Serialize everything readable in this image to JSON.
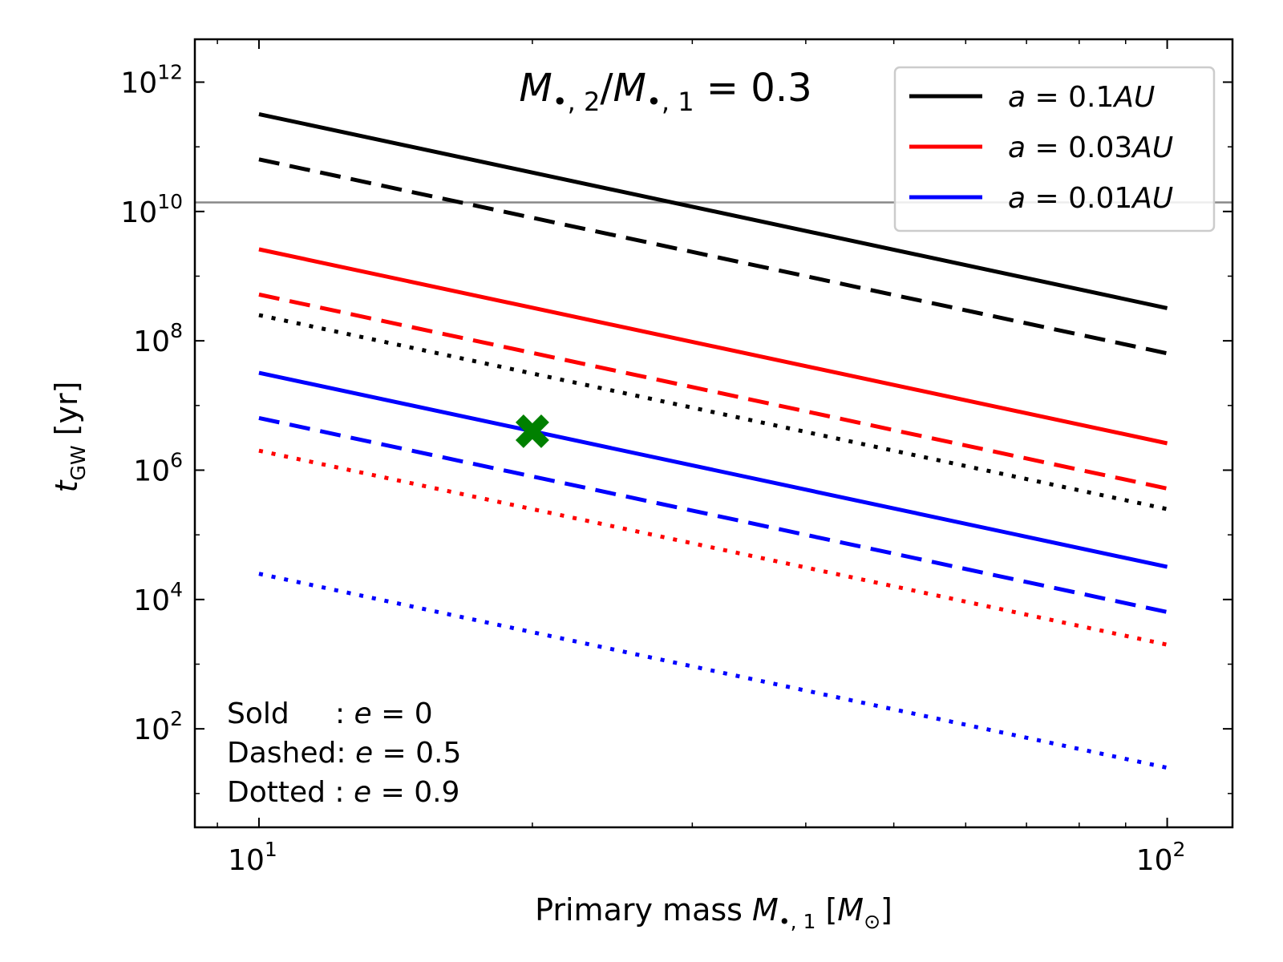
{
  "chart_data": {
    "type": "line",
    "title": "M•,2/M•,1 = 0.3",
    "title_parts": {
      "num": "M",
      "num_sub": "•, 2",
      "slash": "/",
      "den": "M",
      "den_sub": "•, 1",
      "eq": " = 0.3"
    },
    "xlabel": "Primary mass M•,1 [M⊙]",
    "xlabel_parts": {
      "text": "Primary mass ",
      "sym": "M",
      "sub": "•, 1",
      "unit_open": " [",
      "unit": "M",
      "unit_sub": "⊙",
      "unit_close": "]"
    },
    "ylabel": "tGW [yr]",
    "ylabel_parts": {
      "sym": "t",
      "sub": "GW",
      "unit": " [yr]"
    },
    "x_scale": "log",
    "y_scale": "log",
    "xlim": [
      8.5,
      118
    ],
    "ylim": [
      3,
      4600000000000.0
    ],
    "x_ticks": [
      {
        "base": "10",
        "exp": "1",
        "value": 10
      },
      {
        "base": "10",
        "exp": "2",
        "value": 100
      }
    ],
    "y_ticks": [
      {
        "base": "10",
        "exp": "2",
        "value": 100
      },
      {
        "base": "10",
        "exp": "4",
        "value": 10000
      },
      {
        "base": "10",
        "exp": "6",
        "value": 1000000
      },
      {
        "base": "10",
        "exp": "8",
        "value": 100000000
      },
      {
        "base": "10",
        "exp": "10",
        "value": 10000000000
      },
      {
        "base": "10",
        "exp": "12",
        "value": 1000000000000
      }
    ],
    "x": [
      10,
      100
    ],
    "series": [
      {
        "name": "a = 0.1AU, e = 0",
        "color": "#000000",
        "style": "solid",
        "values": [
          320000000000.0,
          320000000.0
        ]
      },
      {
        "name": "a = 0.1AU, e = 0.5",
        "color": "#000000",
        "style": "dashed",
        "values": [
          64000000000.0,
          64000000.0
        ]
      },
      {
        "name": "a = 0.1AU, e = 0.9",
        "color": "#000000",
        "style": "dotted",
        "values": [
          250000000.0,
          250000.0
        ]
      },
      {
        "name": "a = 0.03AU, e = 0",
        "color": "#ff0000",
        "style": "solid",
        "values": [
          2600000000.0,
          2600000.0
        ]
      },
      {
        "name": "a = 0.03AU, e = 0.5",
        "color": "#ff0000",
        "style": "dashed",
        "values": [
          520000000.0,
          520000.0
        ]
      },
      {
        "name": "a = 0.03AU, e = 0.9",
        "color": "#ff0000",
        "style": "dotted",
        "values": [
          2000000.0,
          2000.0
        ]
      },
      {
        "name": "a = 0.01AU, e = 0",
        "color": "#0000ff",
        "style": "solid",
        "values": [
          32000000.0,
          32000.0
        ]
      },
      {
        "name": "a = 0.01AU, e = 0.5",
        "color": "#0000ff",
        "style": "dashed",
        "values": [
          6400000.0,
          6400.0
        ]
      },
      {
        "name": "a = 0.01AU, e = 0.9",
        "color": "#0000ff",
        "style": "dotted",
        "values": [
          25000.0,
          25.0
        ]
      }
    ],
    "hline": {
      "y": 13800000000.0,
      "color": "#888888"
    },
    "marker": {
      "x": 20,
      "y": 4000000.0,
      "color": "#008000",
      "symbol": "X"
    },
    "legend": {
      "placement": "top-right",
      "entries": [
        {
          "prefix": "a",
          "eq": " = 0.1",
          "unit": "AU",
          "color": "#000000"
        },
        {
          "prefix": "a",
          "eq": " = 0.03",
          "unit": "AU",
          "color": "#ff0000"
        },
        {
          "prefix": "a",
          "eq": " = 0.01",
          "unit": "AU",
          "color": "#0000ff"
        }
      ]
    },
    "annotations": [
      {
        "label": "Sold     : ",
        "sym": "e",
        "eq": " = 0"
      },
      {
        "label": "Dashed: ",
        "sym": "e",
        "eq": " = 0.5"
      },
      {
        "label": "Dotted : ",
        "sym": "e",
        "eq": " = 0.9"
      }
    ]
  }
}
